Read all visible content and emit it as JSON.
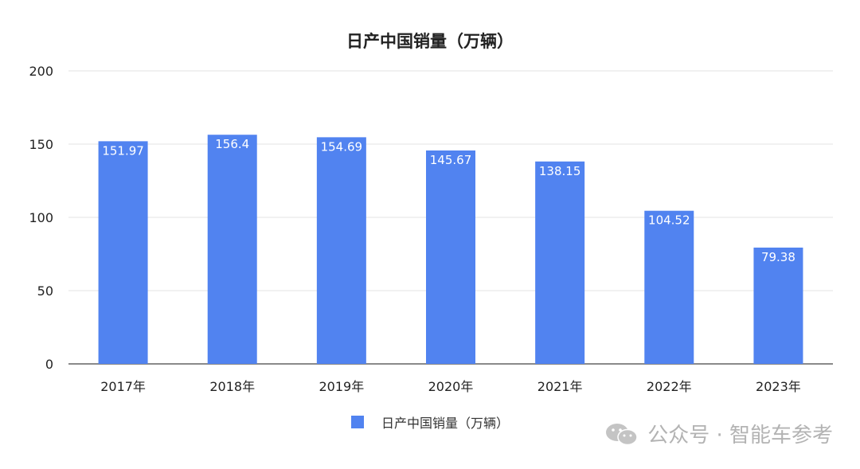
{
  "chart_data": {
    "type": "bar",
    "title": "日产中国销量（万辆）",
    "categories": [
      "2017年",
      "2018年",
      "2019年",
      "2020年",
      "2021年",
      "2022年",
      "2023年"
    ],
    "series": [
      {
        "name": "日产中国销量（万辆）",
        "values": [
          151.97,
          156.4,
          154.69,
          145.67,
          138.15,
          104.52,
          79.38
        ],
        "value_labels": [
          "151.97",
          "156.4",
          "154.69",
          "145.67",
          "138.15",
          "104.52",
          "79.38"
        ]
      }
    ],
    "ylim": [
      0,
      200
    ],
    "yticks": [
      0,
      50,
      100,
      150,
      200
    ],
    "grid": true,
    "legend_position": "bottom",
    "colors": {
      "bar": "#5183f0",
      "grid": "#e3e3e3",
      "axis": "#444444"
    }
  },
  "watermark": {
    "text": "公众号 · 智能车参考",
    "icon": "wechat-icon"
  }
}
